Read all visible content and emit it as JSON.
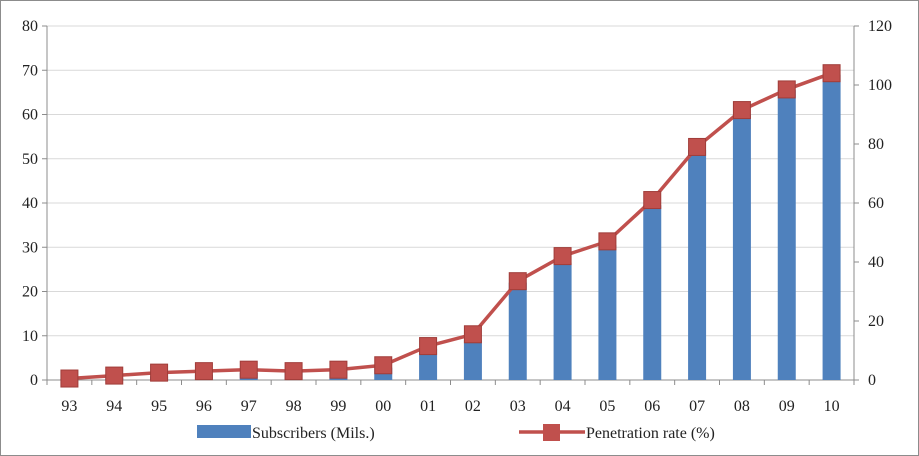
{
  "chart_data": {
    "type": "bar",
    "categories": [
      "93",
      "94",
      "95",
      "96",
      "97",
      "98",
      "99",
      "00",
      "01",
      "02",
      "03",
      "04",
      "05",
      "06",
      "07",
      "08",
      "09",
      "10"
    ],
    "series": [
      {
        "name": "Subscribers (Mils.)",
        "type": "bar",
        "axis": "left",
        "color": "#4f81bd",
        "values": [
          0.2,
          0.4,
          0.8,
          1.2,
          1.6,
          1.8,
          2.0,
          2.8,
          7.0,
          9.0,
          22,
          26.5,
          30.5,
          39.5,
          52,
          60,
          65.5,
          69
        ]
      },
      {
        "name": "Penetration rate (%)",
        "type": "line",
        "axis": "right",
        "color": "#c0504d",
        "values": [
          0.5,
          1.5,
          2.5,
          3.0,
          3.5,
          3.0,
          3.5,
          5.0,
          11.5,
          15.5,
          33.5,
          42.0,
          47.0,
          61.0,
          79.0,
          91.5,
          98.5,
          104.0
        ]
      }
    ],
    "y_left": {
      "ylim": [
        0,
        80
      ],
      "ticks": [
        "0",
        "10",
        "20",
        "30",
        "40",
        "50",
        "60",
        "70",
        "80"
      ]
    },
    "y_right": {
      "ylim": [
        0,
        120
      ],
      "ticks": [
        "0",
        "20",
        "40",
        "60",
        "80",
        "100",
        "120"
      ]
    },
    "title": "",
    "xlabel": "",
    "ylabel": "",
    "grid": true,
    "legend_position": "bottom"
  }
}
